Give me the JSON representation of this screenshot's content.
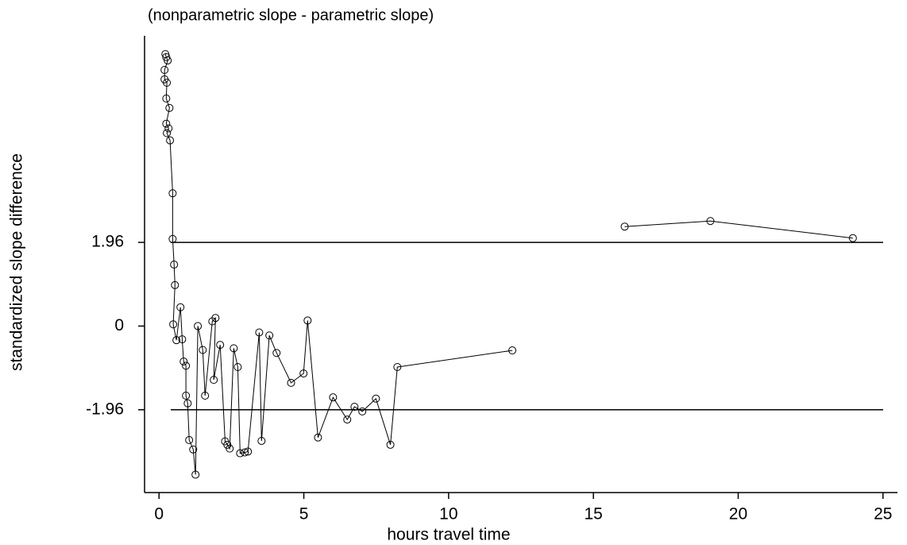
{
  "chart_data": {
    "type": "line",
    "title": "(nonparametric slope - parametric slope)",
    "xlabel": "hours travel time",
    "ylabel": "standardized slope difference",
    "x": [
      0.22,
      0.25,
      0.3,
      0.19,
      0.19,
      0.27,
      0.25,
      0.36,
      0.25,
      0.33,
      0.27,
      0.38,
      0.47,
      0.47,
      0.52,
      0.55,
      0.49,
      0.6,
      0.74,
      0.8,
      0.85,
      0.93,
      0.93,
      0.99,
      1.04,
      1.18,
      1.26,
      1.34,
      1.51,
      1.59,
      1.84,
      1.95,
      1.89,
      2.11,
      2.28,
      2.36,
      2.44,
      2.58,
      2.72,
      2.8,
      2.96,
      3.07,
      3.46,
      3.54,
      3.81,
      4.06,
      4.56,
      4.99,
      5.13,
      5.49,
      6.01,
      6.5,
      6.75,
      7.02,
      7.49,
      7.99,
      8.23,
      12.2,
      null,
      16.08,
      19.04,
      23.96
    ],
    "values": [
      6.37,
      6.3,
      6.22,
      6.0,
      5.78,
      5.7,
      5.33,
      5.11,
      4.74,
      4.63,
      4.52,
      4.35,
      3.11,
      2.04,
      1.44,
      0.96,
      0.04,
      -0.33,
      0.44,
      -0.31,
      -0.83,
      -0.93,
      -1.63,
      -1.81,
      -2.67,
      -2.89,
      -3.48,
      0.0,
      -0.56,
      -1.63,
      0.11,
      0.19,
      -1.26,
      -0.44,
      -2.7,
      -2.78,
      -2.87,
      -0.52,
      -0.96,
      -2.98,
      -2.96,
      -2.94,
      -0.15,
      -2.69,
      -0.22,
      -0.63,
      -1.33,
      -1.11,
      0.13,
      -2.61,
      -1.67,
      -2.19,
      -1.89,
      -2.0,
      -1.7,
      -2.78,
      -0.96,
      -0.57,
      null,
      2.33,
      2.46,
      2.06
    ],
    "color": "#000000",
    "xlim": [
      -0.5,
      25.5
    ],
    "xticks": [
      0,
      5,
      10,
      15,
      20,
      25
    ],
    "ylim": [
      -3.9,
      6.8
    ],
    "yticks": [
      -1.96,
      0,
      1.96
    ],
    "reference_lines": [
      1.96,
      -1.96
    ]
  }
}
